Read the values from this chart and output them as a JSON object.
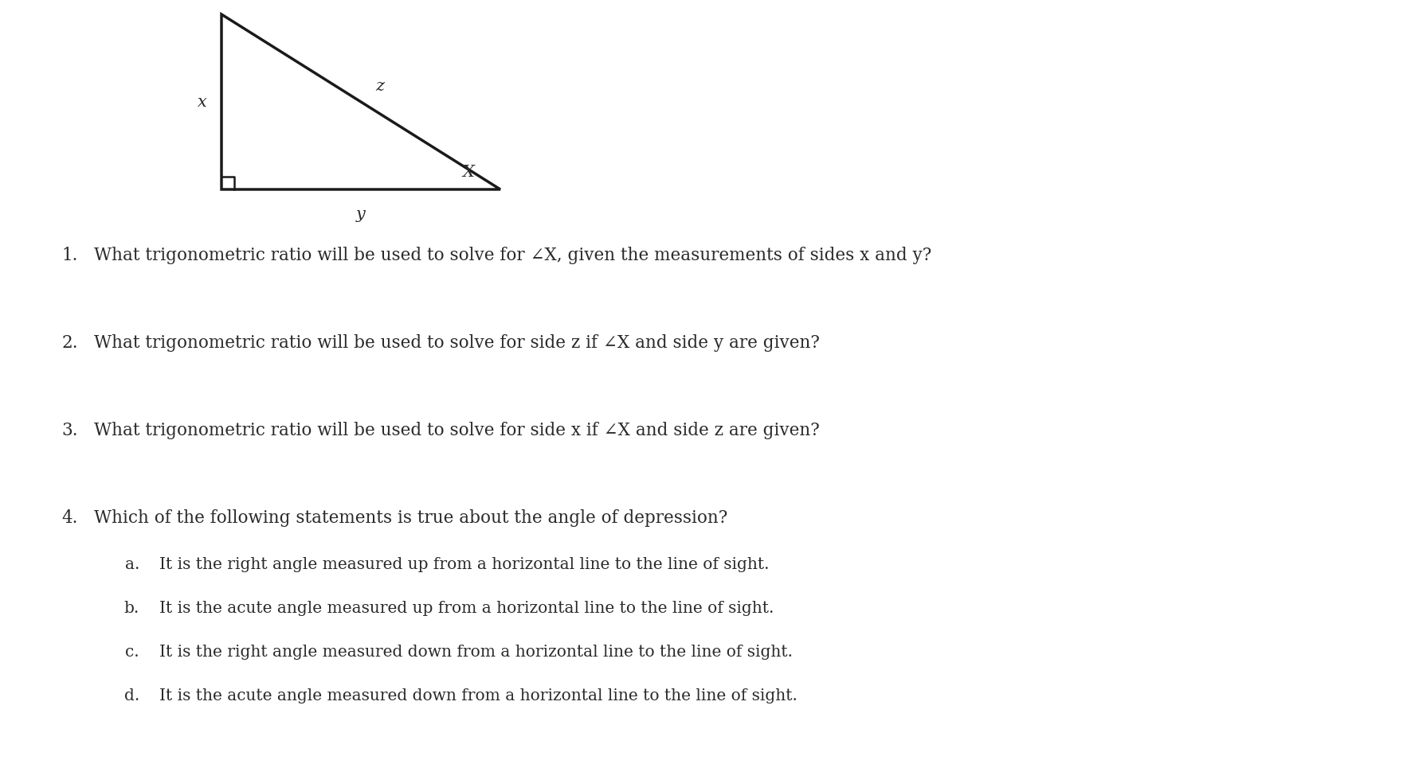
{
  "background_color": "#ffffff",
  "triangle": {
    "line_color": "#1a1a1a",
    "line_width": 2.5
  },
  "triangle_labels": [
    {
      "text": "x",
      "ha": "right",
      "va": "center",
      "fontsize": 15,
      "style": "italic"
    },
    {
      "text": "z",
      "ha": "left",
      "va": "bottom",
      "fontsize": 15,
      "style": "italic"
    },
    {
      "text": "y",
      "ha": "center",
      "va": "top",
      "fontsize": 15,
      "style": "italic"
    },
    {
      "text": "X",
      "ha": "left",
      "va": "center",
      "fontsize": 15,
      "style": "italic"
    }
  ],
  "questions": [
    {
      "number": "1.",
      "text": "What trigonometric ratio will be used to solve for ∠X, given the measurements of sides x and y?",
      "fontsize": 15.5
    },
    {
      "number": "2.",
      "text": "What trigonometric ratio will be used to solve for side z if ∠X and side y are given?",
      "fontsize": 15.5
    },
    {
      "number": "3.",
      "text": "What trigonometric ratio will be used to solve for side x if ∠X and side z are given?",
      "fontsize": 15.5
    },
    {
      "number": "4.",
      "text": "Which of the following statements is true about the angle of depression?",
      "fontsize": 15.5
    }
  ],
  "sub_items": [
    {
      "label": "a.",
      "text": "It is the right angle measured up from a horizontal line to the line of sight.",
      "fontsize": 14.5
    },
    {
      "label": "b.",
      "text": "It is the acute angle measured up from a horizontal line to the line of sight.",
      "fontsize": 14.5
    },
    {
      "label": "c.",
      "text": "It is the right angle measured down from a horizontal line to the line of sight.",
      "fontsize": 14.5
    },
    {
      "label": "d.",
      "text": "It is the acute angle measured down from a horizontal line to the line of sight.",
      "fontsize": 14.5
    }
  ],
  "text_color": "#2a2a2a",
  "font_family": "DejaVu Serif"
}
